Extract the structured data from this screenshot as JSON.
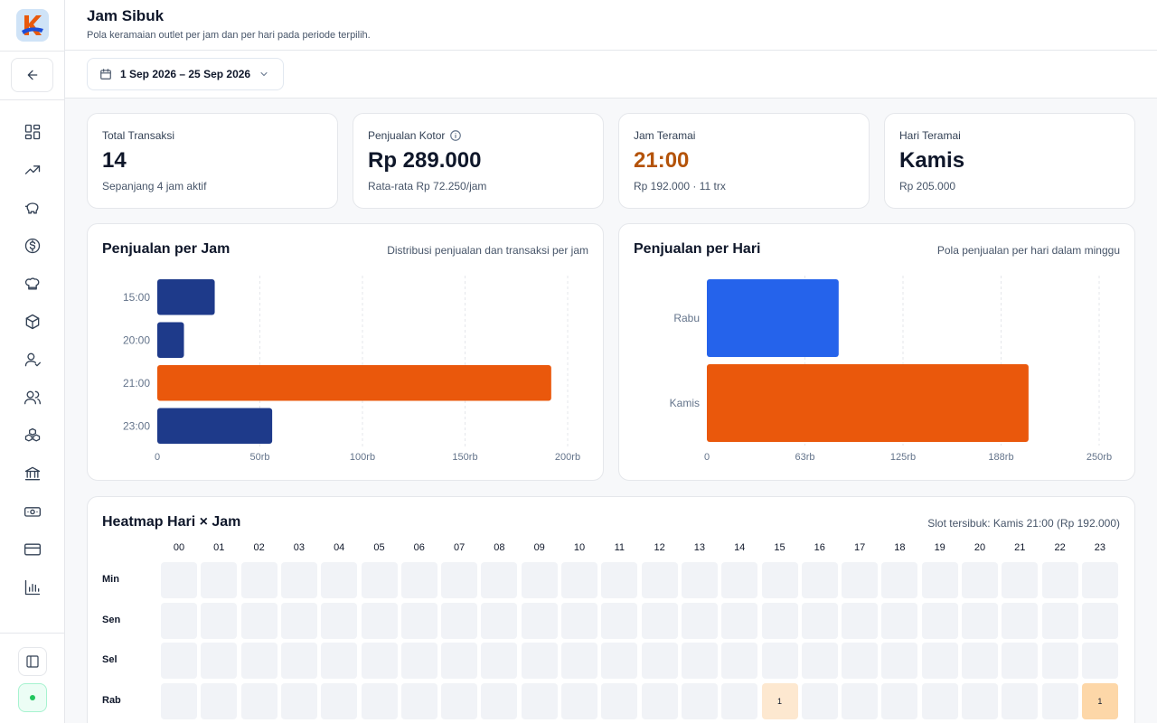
{
  "sidebar": {
    "logo_letter": "K",
    "nav_icons": [
      "dashboard-icon",
      "trending-up-icon",
      "piggy-bank-icon",
      "dollar-icon",
      "chef-hat-icon",
      "package-icon",
      "user-check-icon",
      "users-icon",
      "boxes-icon",
      "bank-icon",
      "banknote-icon",
      "credit-card-icon",
      "bar-chart-icon"
    ]
  },
  "header": {
    "title": "Jam Sibuk",
    "subtitle": "Pola keramaian outlet per jam dan per hari pada periode terpilih."
  },
  "filter": {
    "date_range": "1 Sep 2026 – 25 Sep 2026"
  },
  "kpis": [
    {
      "label": "Total Transaksi",
      "value": "14",
      "sub": "Sepanjang 4 jam aktif",
      "value_color": "#0f172a"
    },
    {
      "label": "Penjualan Kotor",
      "value": "Rp 289.000",
      "sub": "Rata-rata Rp 72.250/jam",
      "value_color": "#0f172a"
    },
    {
      "label": "Jam Teramai",
      "value": "21:00",
      "sub": "Rp 192.000 · 11 trx",
      "value_color": "#b45309"
    },
    {
      "label": "Hari Teramai",
      "value": "Kamis",
      "sub": "Rp 205.000",
      "value_color": "#0f172a"
    }
  ],
  "hourly": {
    "title": "Penjualan per Jam",
    "desc": "Distribusi penjualan dan transaksi per jam"
  },
  "daily": {
    "title": "Penjualan per Hari",
    "desc": "Pola penjualan per hari dalam minggu"
  },
  "heatmap": {
    "title": "Heatmap Hari × Jam",
    "peak": "Slot tersibuk: Kamis 21:00 (Rp 192.000)",
    "hours": [
      "00",
      "01",
      "02",
      "03",
      "04",
      "05",
      "06",
      "07",
      "08",
      "09",
      "10",
      "11",
      "12",
      "13",
      "14",
      "15",
      "16",
      "17",
      "18",
      "19",
      "20",
      "21",
      "22",
      "23"
    ],
    "days": [
      "Min",
      "Sen",
      "Sel",
      "Rab"
    ],
    "cells": [
      {
        "day": "Rab",
        "hour": "15",
        "value": "1",
        "color": "#fde8d0"
      },
      {
        "day": "Rab",
        "hour": "23",
        "value": "1",
        "color": "#fdd7a8"
      }
    ]
  },
  "colors": {
    "navy": "#1e3a8a",
    "orange": "#ea580c",
    "blue": "#2563eb",
    "peak_text": "#b45309"
  },
  "chart_data": [
    {
      "type": "bar",
      "orientation": "horizontal",
      "title": "Penjualan per Jam",
      "categories": [
        "15:00",
        "20:00",
        "21:00",
        "23:00"
      ],
      "values": [
        28000,
        13000,
        192000,
        56000
      ],
      "colors": [
        "#1e3a8a",
        "#1e3a8a",
        "#ea580c",
        "#1e3a8a"
      ],
      "ticks": [
        "0",
        "50rb",
        "100rb",
        "150rb",
        "200rb"
      ],
      "xlim": [
        0,
        200000
      ],
      "grid": true
    },
    {
      "type": "bar",
      "orientation": "horizontal",
      "title": "Penjualan per Hari",
      "categories": [
        "Rabu",
        "Kamis"
      ],
      "values": [
        84000,
        205000
      ],
      "colors": [
        "#2563eb",
        "#ea580c"
      ],
      "ticks": [
        "0",
        "63rb",
        "125rb",
        "188rb",
        "250rb"
      ],
      "xlim": [
        0,
        250000
      ],
      "grid": true
    }
  ]
}
